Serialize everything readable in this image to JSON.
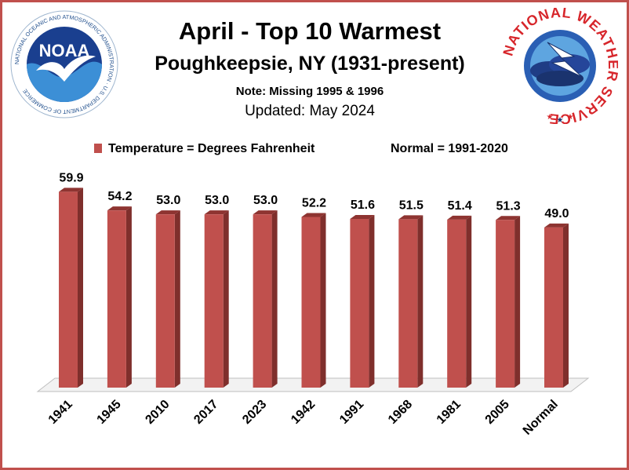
{
  "header": {
    "title": "April - Top 10 Warmest",
    "subtitle": "Poughkeepsie, NY (1931-present)",
    "note": "Note: Missing 1995 & 1996",
    "updated": "Updated:  May 2024"
  },
  "legend": {
    "series_label": "Temperature = Degrees Fahrenheit",
    "normal_label": "Normal = 1991-2020"
  },
  "logos": {
    "noaa_text": "NOAA",
    "noaa_ring_text": "NATIONAL OCEANIC AND ATMOSPHERIC ADMINISTRATION · U.S. DEPARTMENT OF COMMERCE",
    "nws_ring_text": "NATIONAL WEATHER SERVICE"
  },
  "colors": {
    "bar_front": "#c0504d",
    "bar_side": "#7f2f2c",
    "bar_top": "#8e3431",
    "border": "#c0504d"
  },
  "chart_data": {
    "type": "bar",
    "categories": [
      "1941",
      "1945",
      "2010",
      "2017",
      "2023",
      "1942",
      "1991",
      "1968",
      "1981",
      "2005",
      "Normal"
    ],
    "values": [
      59.9,
      54.2,
      53.0,
      53.0,
      53.0,
      52.2,
      51.6,
      51.5,
      51.4,
      51.3,
      49.0
    ],
    "value_labels": [
      "59.9",
      "54.2",
      "53.0",
      "53.0",
      "53.0",
      "52.2",
      "51.6",
      "51.5",
      "51.4",
      "51.3",
      "49.0"
    ],
    "title": "April - Top 10 Warmest",
    "xlabel": "",
    "ylabel": "",
    "ylim": [
      0,
      60
    ],
    "grid": false,
    "legend_position": "top",
    "style": "3d-column"
  }
}
